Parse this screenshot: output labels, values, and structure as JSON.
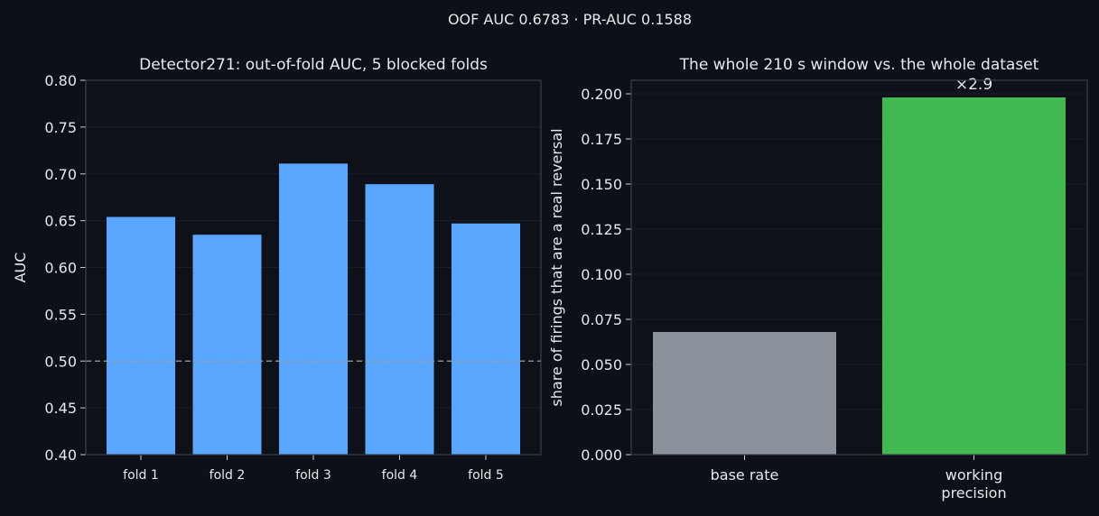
{
  "suptitle": "OOF AUC 0.6783 · PR-AUC 0.1588",
  "colors": {
    "background": "#0d1017",
    "axes_face": "#0e1118",
    "spine": "#3a3f4a",
    "grid": "#1b1f28",
    "text": "#e6e8ec",
    "fold_bar": "#58a6ff",
    "base_rate_bar": "#8b929c",
    "precision_bar": "#3fb950",
    "reference_line": "#9aa0a8"
  },
  "chart_data": [
    {
      "type": "bar",
      "title": "Detector271: out-of-fold AUC, 5 blocked folds",
      "xlabel": "",
      "ylabel": "AUC",
      "categories": [
        "fold 1",
        "fold 2",
        "fold 3",
        "fold 4",
        "fold 5"
      ],
      "values": [
        0.654,
        0.635,
        0.711,
        0.689,
        0.647
      ],
      "ylim": [
        0.4,
        0.8
      ],
      "yticks": [
        "0.40",
        "0.45",
        "0.50",
        "0.55",
        "0.60",
        "0.65",
        "0.70",
        "0.75",
        "0.80"
      ],
      "reference_line": 0.5,
      "grid": true
    },
    {
      "type": "bar",
      "title": "The whole 210 s window vs. the whole dataset",
      "xlabel": "",
      "ylabel": "share of firings that are a real reversal",
      "categories": [
        [
          "base rate"
        ],
        [
          "working",
          "precision"
        ]
      ],
      "values": [
        0.068,
        0.198
      ],
      "ylim": [
        0.0,
        0.2075
      ],
      "yticks": [
        "0.000",
        "0.025",
        "0.050",
        "0.075",
        "0.100",
        "0.125",
        "0.150",
        "0.175",
        "0.200"
      ],
      "annotations": [
        "×2.9"
      ],
      "grid": true
    }
  ]
}
